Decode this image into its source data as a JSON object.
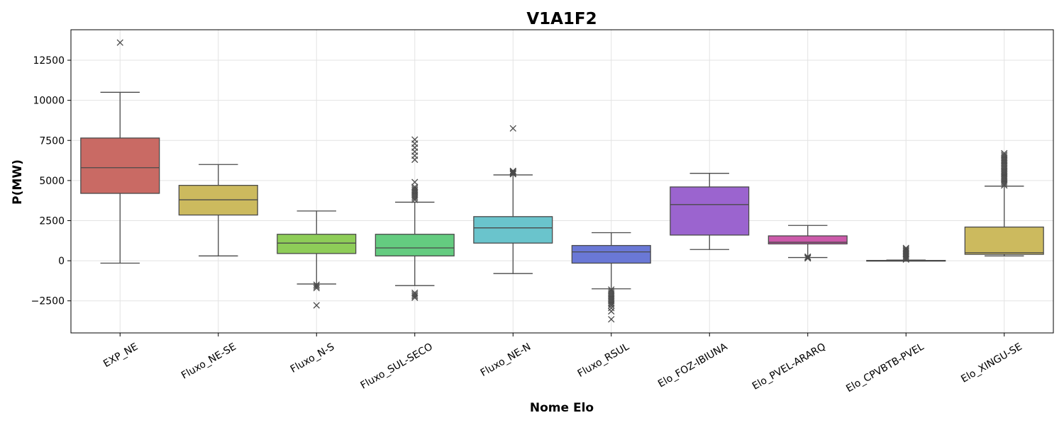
{
  "chart_data": {
    "type": "box",
    "title": "V1A1F2",
    "xlabel": "Nome Elo",
    "ylabel": "P(MW)",
    "ylim": [
      -4500,
      14400
    ],
    "yticks": [
      -2500,
      0,
      2500,
      5000,
      7500,
      10000,
      12500
    ],
    "ytick_labels": [
      "−2500",
      "0",
      "2500",
      "5000",
      "7500",
      "10000",
      "12500"
    ],
    "grid": true,
    "categories": [
      "EXP_NE",
      "Fluxo_NE-SE",
      "Fluxo_N-S",
      "Fluxo_SUL-SECO",
      "Fluxo_NE-N",
      "Fluxo_RSUL",
      "Elo_FOZ-IBIUNA",
      "Elo_PVEL-ARARQ",
      "Elo_CPVBTB-PVEL",
      "Elo_XINGU-SE"
    ],
    "colors": [
      "#c96a64",
      "#ccba5e",
      "#8ecd58",
      "#64cc80",
      "#6ac4cc",
      "#6a78d6",
      "#9b64cf",
      "#cc5aaa",
      "#c96a64",
      "#ccba5e"
    ],
    "boxes": [
      {
        "whislo": -150,
        "q1": 4200,
        "med": 5800,
        "q3": 7650,
        "whishi": 10500,
        "fliers": [
          13600
        ]
      },
      {
        "whislo": 300,
        "q1": 2850,
        "med": 3800,
        "q3": 4700,
        "whishi": 6000,
        "fliers": []
      },
      {
        "whislo": -1450,
        "q1": 450,
        "med": 1100,
        "q3": 1650,
        "whishi": 3100,
        "fliers": [
          -1500,
          -1600,
          -1700,
          -2780
        ]
      },
      {
        "whislo": -1550,
        "q1": 300,
        "med": 800,
        "q3": 1650,
        "whishi": 3650,
        "fliers": [
          -2000,
          -2100,
          -2200,
          -2300,
          3800,
          3900,
          4000,
          4100,
          4200,
          4300,
          4400,
          4500,
          4600,
          4900,
          6300,
          6550,
          6800,
          7050,
          7300,
          7550
        ]
      },
      {
        "whislo": -800,
        "q1": 1100,
        "med": 2050,
        "q3": 2750,
        "whishi": 5350,
        "fliers": [
          5400,
          5450,
          5500,
          5550,
          5600,
          8250
        ]
      },
      {
        "whislo": -1750,
        "q1": -150,
        "med": 550,
        "q3": 950,
        "whishi": 1750,
        "fliers": [
          -1800,
          -1900,
          -2000,
          -2100,
          -2200,
          -2300,
          -2400,
          -2500,
          -2600,
          -2700,
          -2800,
          -2950,
          -3150,
          -3650
        ]
      },
      {
        "whislo": 700,
        "q1": 1600,
        "med": 3500,
        "q3": 4600,
        "whishi": 5450,
        "fliers": []
      },
      {
        "whislo": 200,
        "q1": 1050,
        "med": 1150,
        "q3": 1550,
        "whishi": 2200,
        "fliers": [
          150,
          200,
          250
        ]
      },
      {
        "whislo": 0,
        "q1": 0,
        "med": 0,
        "q3": 20,
        "whishi": 40,
        "fliers": [
          80,
          150,
          230,
          310,
          390,
          470,
          550,
          630,
          710,
          790
        ]
      },
      {
        "whislo": 300,
        "q1": 400,
        "med": 500,
        "q3": 2100,
        "whishi": 4650,
        "fliers": [
          4700,
          4800,
          4900,
          5000,
          5100,
          5200,
          5300,
          5400,
          5500,
          5600,
          5700,
          5800,
          5900,
          6000,
          6100,
          6200,
          6300,
          6400,
          6500,
          6600,
          6700
        ]
      }
    ]
  }
}
